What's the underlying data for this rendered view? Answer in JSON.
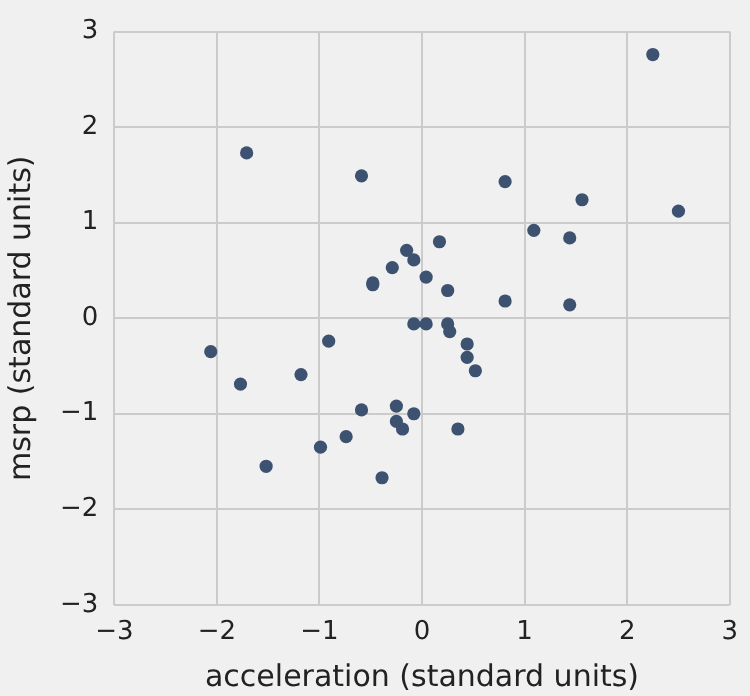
{
  "chart_data": {
    "type": "scatter",
    "xlabel": "acceleration (standard units)",
    "ylabel": "msrp (standard units)",
    "xlim": [
      -3,
      3
    ],
    "ylim": [
      -3,
      3
    ],
    "xticks": [
      -3,
      -2,
      -1,
      0,
      1,
      2,
      3
    ],
    "yticks": [
      -3,
      -2,
      -1,
      0,
      1,
      2,
      3
    ],
    "grid": true,
    "legend": false,
    "marker": "circle",
    "series": [
      {
        "color": "#3d5170",
        "x": [
          -1.71,
          -0.59,
          -0.48,
          -0.48,
          -2.06,
          -1.77,
          -1.18,
          -0.91,
          -0.59,
          -0.74,
          -0.99,
          -1.52,
          -0.39,
          2.25,
          0.81,
          1.56,
          2.5,
          1.09,
          1.44,
          0.17,
          -0.15,
          -0.08,
          -0.29,
          0.04,
          0.25,
          0.81,
          1.44,
          -0.08,
          0.04,
          0.25,
          0.27,
          0.44,
          0.44,
          0.52,
          -0.25,
          -0.08,
          -0.25,
          -0.19,
          0.35
        ],
        "values": [
          1.73,
          1.49,
          0.35,
          0.37,
          -0.35,
          -0.69,
          -0.59,
          -0.24,
          -0.96,
          -1.24,
          -1.35,
          -1.55,
          -1.67,
          2.76,
          1.43,
          1.24,
          1.12,
          0.92,
          0.84,
          0.8,
          0.71,
          0.61,
          0.53,
          0.43,
          0.29,
          0.18,
          0.14,
          -0.06,
          -0.06,
          -0.06,
          -0.14,
          -0.27,
          -0.41,
          -0.55,
          -0.92,
          -1.0,
          -1.08,
          -1.16,
          -1.16
        ]
      }
    ]
  }
}
